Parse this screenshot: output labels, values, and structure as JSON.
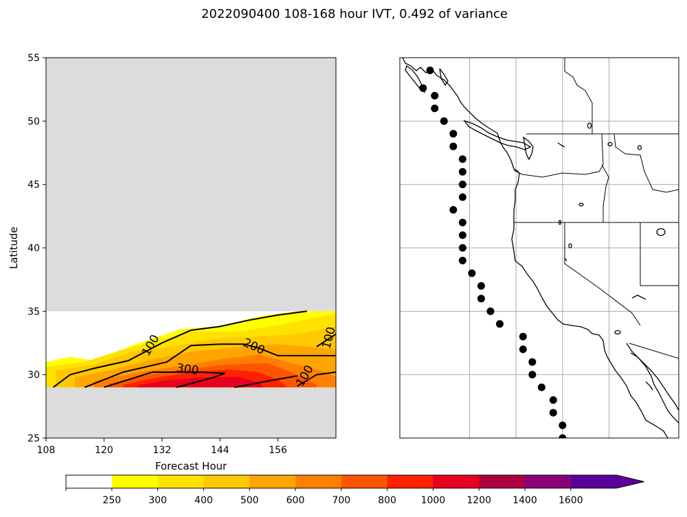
{
  "figure": {
    "title": "2022090400 108-168 hour IVT, 0.492 of variance"
  },
  "chart_data": [
    {
      "type": "heatmap",
      "subtype": "filled-contour with line contours",
      "xlabel": "Forecast Hour",
      "ylabel": "Latitude",
      "xlim": [
        108,
        168
      ],
      "ylim": [
        25,
        55
      ],
      "x_ticks": [
        "108",
        "120",
        "132",
        "144",
        "156"
      ],
      "y_ticks": [
        "25",
        "30",
        "35",
        "40",
        "45",
        "50",
        "55"
      ],
      "background_color": "#dcdcdc",
      "data_region": {
        "lat_min": 29,
        "lat_max": 35
      },
      "fill_levels": [
        {
          "min": 250,
          "points": [
            [
              108,
              31
            ],
            [
              113,
              31.4
            ],
            [
              120,
              31
            ],
            [
              125,
              32.2
            ],
            [
              136,
              33.6
            ],
            [
              144,
              33.8
            ],
            [
              152,
              34.6
            ],
            [
              160,
              35
            ],
            [
              168,
              35
            ],
            [
              168,
              29
            ],
            [
              108,
              29
            ]
          ]
        },
        {
          "min": 300,
          "points": [
            [
              108,
              30.6
            ],
            [
              116,
              31
            ],
            [
              124,
              32
            ],
            [
              130,
              32.6
            ],
            [
              138,
              33.4
            ],
            [
              148,
              33.4
            ],
            [
              156,
              33.9
            ],
            [
              168,
              34.8
            ],
            [
              168,
              29
            ],
            [
              108,
              29
            ]
          ]
        },
        {
          "min": 400,
          "points": [
            [
              110,
              30.3
            ],
            [
              118,
              30.8
            ],
            [
              126,
              31.8
            ],
            [
              134,
              32.2
            ],
            [
              142,
              32.8
            ],
            [
              152,
              33
            ],
            [
              160,
              33.2
            ],
            [
              168,
              33.8
            ],
            [
              168,
              29
            ],
            [
              110,
              29
            ]
          ]
        },
        {
          "min": 500,
          "points": [
            [
              114,
              29.8
            ],
            [
              122,
              30.4
            ],
            [
              130,
              31.2
            ],
            [
              138,
              31.8
            ],
            [
              148,
              32.2
            ],
            [
              156,
              32.4
            ],
            [
              168,
              32
            ],
            [
              168,
              29
            ],
            [
              114,
              29
            ]
          ]
        },
        {
          "min": 600,
          "points": [
            [
              118,
              29.5
            ],
            [
              126,
              30.1
            ],
            [
              134,
              30.6
            ],
            [
              144,
              31.2
            ],
            [
              152,
              31.6
            ],
            [
              160,
              30.8
            ],
            [
              166,
              30.2
            ],
            [
              168,
              29.8
            ],
            [
              168,
              29
            ],
            [
              118,
              29
            ]
          ]
        },
        {
          "min": 700,
          "points": [
            [
              121,
              29.3
            ],
            [
              128,
              29.9
            ],
            [
              136,
              30.4
            ],
            [
              146,
              30.8
            ],
            [
              154,
              30.9
            ],
            [
              160,
              30
            ],
            [
              164,
              29.2
            ],
            [
              164,
              29
            ],
            [
              121,
              29
            ]
          ]
        },
        {
          "min": 800,
          "points": [
            [
              124,
              29.2
            ],
            [
              130,
              29.7
            ],
            [
              138,
              30.2
            ],
            [
              146,
              30.4
            ],
            [
              152,
              30.2
            ],
            [
              156,
              29.6
            ],
            [
              158,
              29
            ],
            [
              124,
              29
            ]
          ]
        },
        {
          "min": 1000,
          "points": [
            [
              127,
              29.15
            ],
            [
              132,
              29.5
            ],
            [
              140,
              29.8
            ],
            [
              148,
              29.8
            ],
            [
              152,
              29.4
            ],
            [
              153,
              29
            ],
            [
              127,
              29
            ]
          ]
        }
      ],
      "contour_lines": [
        {
          "level": 100,
          "points": [
            [
              109.5,
              29
            ],
            [
              113,
              30
            ],
            [
              118,
              30.5
            ],
            [
              125,
              31.1
            ],
            [
              132,
              32.5
            ],
            [
              138,
              33.5
            ],
            [
              144,
              33.8
            ],
            [
              150,
              34.3
            ],
            [
              156,
              34.7
            ],
            [
              162,
              35
            ]
          ]
        },
        {
          "level": 100,
          "points": [
            [
              160,
              29.1
            ],
            [
              164,
              30
            ],
            [
              168,
              30.2
            ]
          ]
        },
        {
          "level": 100,
          "points": [
            [
              164,
              32.2
            ],
            [
              168,
              33.2
            ]
          ]
        },
        {
          "level": 200,
          "points": [
            [
              116,
              29
            ],
            [
              124,
              30.2
            ],
            [
              133,
              31
            ],
            [
              138,
              32.3
            ],
            [
              144,
              32.4
            ],
            [
              149,
              32.4
            ],
            [
              152,
              32.1
            ],
            [
              156,
              31.5
            ],
            [
              168,
              31.5
            ]
          ]
        },
        {
          "level": 200,
          "points": [
            [
              147,
              29
            ],
            [
              154,
              29.5
            ],
            [
              160,
              29.9
            ]
          ]
        },
        {
          "level": 300,
          "points": [
            [
              120,
              29
            ],
            [
              125,
              29.6
            ],
            [
              130,
              30.2
            ],
            [
              140,
              30.2
            ],
            [
              145,
              30.1
            ],
            [
              142,
              29.7
            ],
            [
              138,
              29.3
            ],
            [
              135,
              29
            ]
          ]
        }
      ],
      "contour_labels": [
        {
          "text": "100",
          "x": 129.7,
          "y": 32.3,
          "rotate": -60
        },
        {
          "text": "200",
          "x": 151,
          "y": 32.2,
          "rotate": 25
        },
        {
          "text": "300",
          "x": 137.3,
          "y": 30.4,
          "rotate": 8
        },
        {
          "text": "100",
          "x": 161.6,
          "y": 29.9,
          "rotate": -60
        },
        {
          "text": "100",
          "x": 166.6,
          "y": 32.9,
          "rotate": -75
        }
      ]
    },
    {
      "type": "map",
      "region": "US West Coast",
      "xlim": [
        -131.5,
        -119.5
      ],
      "ylim": [
        25,
        55
      ],
      "gridlines_lon": [
        -128.5,
        -126.5,
        -124.5,
        -122.5
      ],
      "gridlines_lat": [
        30,
        35,
        40,
        45,
        50
      ],
      "points": [
        [
          -130.2,
          54
        ],
        [
          -130.5,
          52.6
        ],
        [
          -130,
          52
        ],
        [
          -130,
          51
        ],
        [
          -129.6,
          50
        ],
        [
          -129.2,
          49
        ],
        [
          -129.2,
          48
        ],
        [
          -128.8,
          47
        ],
        [
          -128.8,
          46
        ],
        [
          -128.8,
          45
        ],
        [
          -128.8,
          44
        ],
        [
          -129.2,
          43
        ],
        [
          -128.8,
          42
        ],
        [
          -128.8,
          41
        ],
        [
          -128.8,
          40
        ],
        [
          -128.8,
          39
        ],
        [
          -128.4,
          38
        ],
        [
          -128,
          37
        ],
        [
          -128,
          36
        ],
        [
          -127.6,
          35
        ],
        [
          -127.2,
          34
        ],
        [
          -126.2,
          33
        ],
        [
          -126.2,
          32
        ],
        [
          -125.8,
          31
        ],
        [
          -125.8,
          30
        ],
        [
          -125.4,
          29
        ],
        [
          -124.9,
          28
        ],
        [
          -124.9,
          27
        ],
        [
          -124.5,
          26
        ],
        [
          -124.5,
          25
        ]
      ]
    },
    {
      "type": "colorbar",
      "ticks": [
        "250",
        "300",
        "400",
        "500",
        "600",
        "700",
        "800",
        "1000",
        "1200",
        "1400",
        "1600"
      ],
      "colors": [
        "#ffffff",
        "#ffff00",
        "#ffe200",
        "#ffc800",
        "#ffa500",
        "#ff8000",
        "#ff5500",
        "#ff2000",
        "#e8001f",
        "#ad0040",
        "#8b007a",
        "#5a0099"
      ]
    }
  ]
}
